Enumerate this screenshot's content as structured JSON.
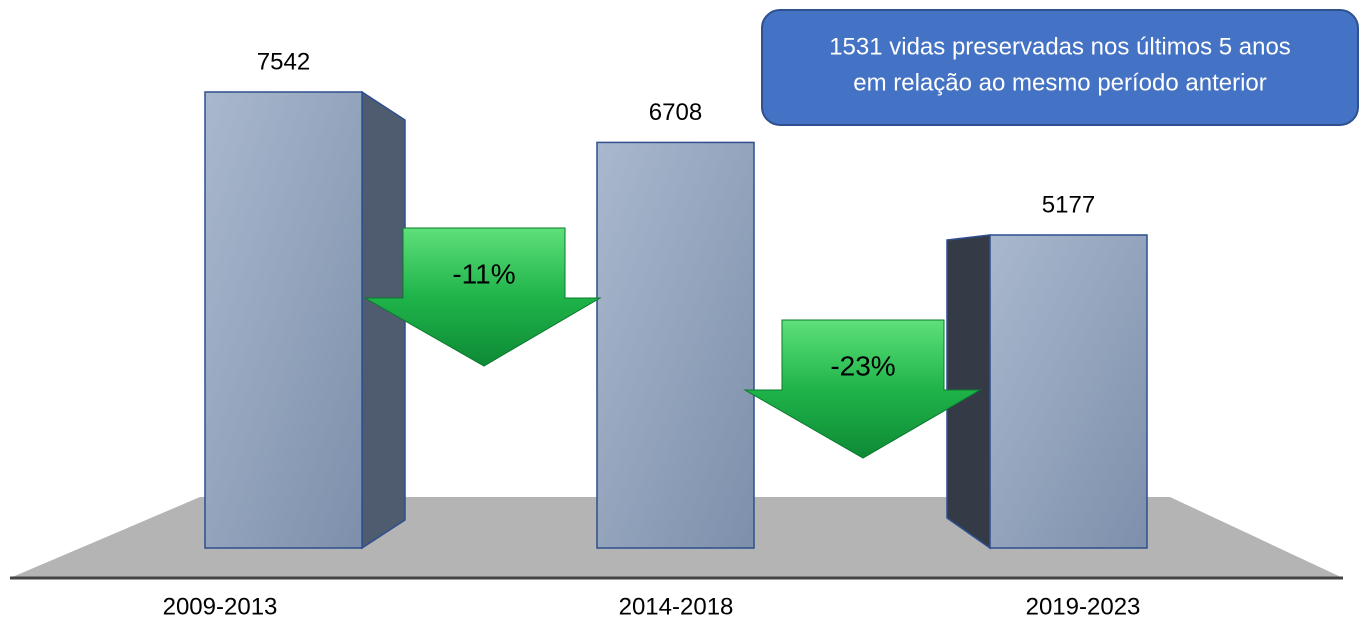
{
  "chart_data": {
    "type": "bar3d",
    "categories": [
      "2009-2013",
      "2014-2018",
      "2019-2023"
    ],
    "values": [
      7542,
      6708,
      5177
    ],
    "color": "#8c9db8",
    "annotations": [
      "-11%",
      "-23%"
    ],
    "callout": [
      "1531 vidas preservadas nos últimos 5 anos",
      "em relação ao mesmo período anterior"
    ]
  }
}
